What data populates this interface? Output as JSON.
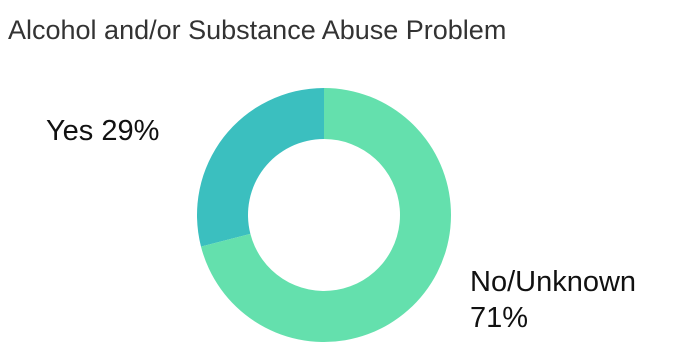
{
  "chart_data": {
    "type": "pie",
    "title": "Alcohol and/or Substance Abuse Problem",
    "donut": true,
    "slices": [
      {
        "label": "Yes",
        "value": 29,
        "display": "29%",
        "color": "#3bbfbf"
      },
      {
        "label": "No/Unknown",
        "value": 71,
        "display": "71%",
        "color": "#64e0ad"
      }
    ],
    "labels_outside": true,
    "legend": "none"
  }
}
